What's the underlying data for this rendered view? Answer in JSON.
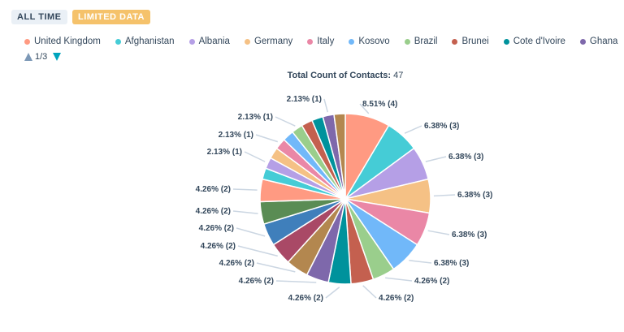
{
  "badges": {
    "all_time": "ALL TIME",
    "limited": "LIMITED DATA"
  },
  "legend": [
    {
      "label": "United Kingdom",
      "color": "#ff9a82"
    },
    {
      "label": "Afghanistan",
      "color": "#45ccd6"
    },
    {
      "label": "Albania",
      "color": "#b59fe6"
    },
    {
      "label": "Germany",
      "color": "#f5c185"
    },
    {
      "label": "Italy",
      "color": "#ea87a6"
    },
    {
      "label": "Kosovo",
      "color": "#71b8f9"
    },
    {
      "label": "Brazil",
      "color": "#9ace8c"
    },
    {
      "label": "Brunei",
      "color": "#c4604f"
    },
    {
      "label": "Cote d'Ivoire",
      "color": "#00929c"
    },
    {
      "label": "Ghana",
      "color": "#7e68ab"
    }
  ],
  "pager": {
    "page": "1/3"
  },
  "chart_data": {
    "type": "pie",
    "title_label": "Total Count of Contacts:",
    "title_value": "47",
    "values": [
      4,
      3,
      3,
      3,
      3,
      3,
      2,
      2,
      2,
      2,
      2,
      2,
      2,
      2,
      2,
      1,
      1,
      1,
      1,
      1,
      1,
      1,
      1,
      1,
      1
    ],
    "colors": [
      "#ff9a82",
      "#45ccd6",
      "#b59fe6",
      "#f5c185",
      "#ea87a6",
      "#71b8f9",
      "#9ace8c",
      "#c4604f",
      "#00929c",
      "#7e68ab",
      "#b3874f",
      "#a94966",
      "#3f7fbb",
      "#5a8c54",
      "#ff9a82",
      "#45ccd6",
      "#b59fe6",
      "#f5c185",
      "#ea87a6",
      "#71b8f9",
      "#9ace8c",
      "#c4604f",
      "#00929c",
      "#7e68ab",
      "#b3874f"
    ],
    "labels": [
      "8.51% (4)",
      "6.38% (3)",
      "6.38% (3)",
      "6.38% (3)",
      "6.38% (3)",
      "6.38% (3)",
      "4.26% (2)",
      "4.26% (2)",
      "4.26% (2)",
      "4.26% (2)",
      "4.26% (2)",
      "4.26% (2)",
      "4.26% (2)",
      "4.26% (2)",
      "4.26% (2)",
      "",
      "2.13% (1)",
      "",
      "2.13% (1)",
      "",
      "2.13% (1)",
      "",
      "",
      "2.13% (1)",
      ""
    ]
  }
}
